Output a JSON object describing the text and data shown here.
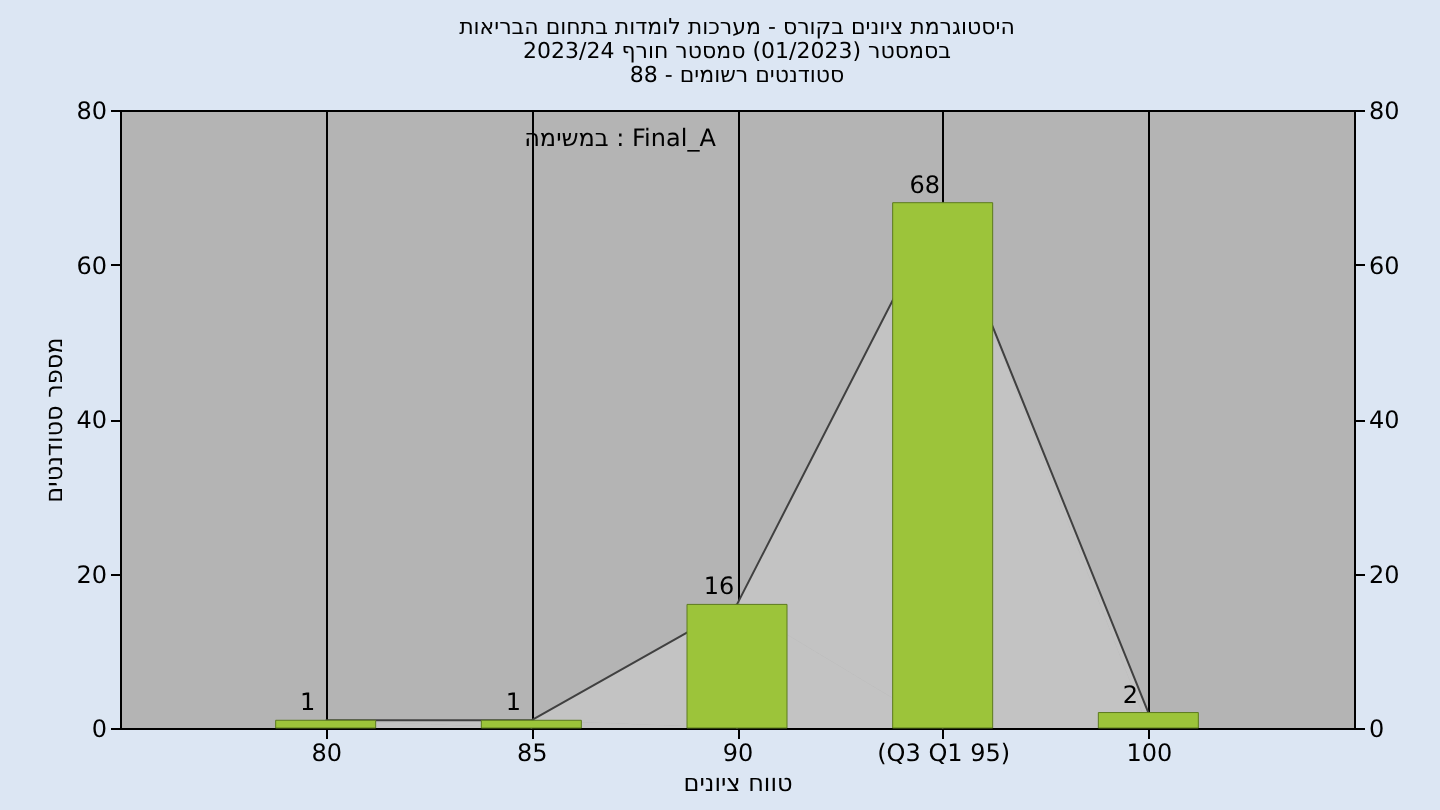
{
  "chart_data": {
    "type": "bar",
    "title": [
      "היסטוגרמת ציונים בקורס - מערכות לומדות בתחום הבריאות",
      "בסמסטר  (01/2023)  סמסטר חורף 2023/24",
      "סטודנטים רשומים - 88"
    ],
    "xlabel": "טווח ציונים",
    "ylabel": "מספר סטודנטים",
    "categories": [
      "80",
      "85",
      "90",
      "(Q3 Q1 95)",
      "100"
    ],
    "series": [
      {
        "color": "#9cc43a",
        "values": [
          1,
          1,
          16,
          68,
          2
        ],
        "value_labels": [
          "1",
          "1",
          "16",
          "68",
          "2"
        ]
      },
      {
        "type": "area",
        "color": "#c4c4c4",
        "values": [
          1,
          1,
          16,
          68,
          2
        ]
      }
    ],
    "annotations": [
      "במשימה : Final_A"
    ],
    "ylim": [
      0,
      80
    ],
    "yticks": [
      0,
      20,
      40,
      60,
      80
    ],
    "y2lim": [
      0,
      80
    ],
    "y2ticks": [
      0,
      20,
      40,
      60,
      80
    ],
    "grid": "x"
  }
}
